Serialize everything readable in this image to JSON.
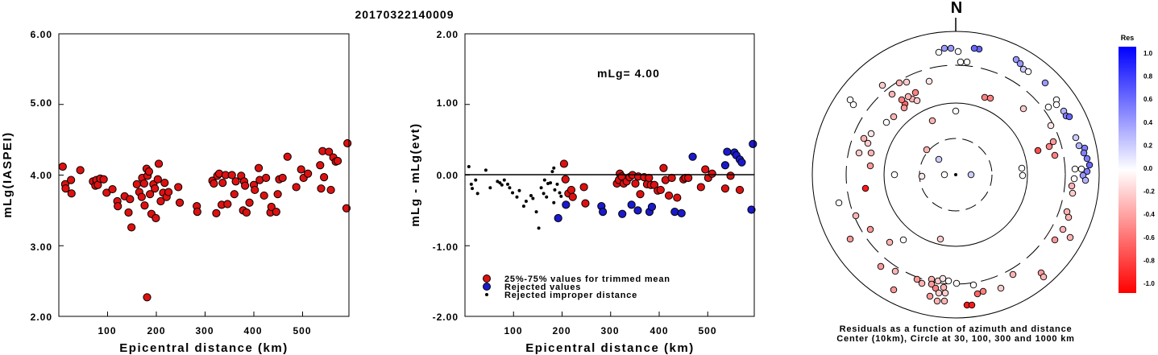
{
  "title": "20170322140009",
  "colors": {
    "kept": "#dd1111",
    "rejected": "#1a1acc",
    "improper": "#000000"
  },
  "chart_data": [
    {
      "type": "scatter",
      "name": "left",
      "xlabel": "Epicentral distance (km)",
      "ylabel": "mLg(IASPEI)",
      "xlim": [
        0,
        595
      ],
      "ylim": [
        2.0,
        6.0
      ],
      "xticks": [
        "100",
        "200",
        "300",
        "400",
        "500"
      ],
      "yticks": [
        "2.00",
        "3.00",
        "4.00",
        "5.00",
        "6.00"
      ],
      "points": [
        [
          8,
          4.12
        ],
        [
          13,
          3.87
        ],
        [
          14,
          3.81
        ],
        [
          25,
          3.93
        ],
        [
          26,
          3.74
        ],
        [
          44,
          4.07
        ],
        [
          70,
          3.91
        ],
        [
          75,
          3.85
        ],
        [
          77,
          3.93
        ],
        [
          80,
          3.86
        ],
        [
          85,
          3.95
        ],
        [
          92,
          3.94
        ],
        [
          98,
          3.75
        ],
        [
          110,
          3.8
        ],
        [
          120,
          3.63
        ],
        [
          121,
          3.56
        ],
        [
          135,
          3.7
        ],
        [
          143,
          3.47
        ],
        [
          146,
          3.66
        ],
        [
          149,
          3.26
        ],
        [
          160,
          3.87
        ],
        [
          165,
          3.76
        ],
        [
          170,
          3.69
        ],
        [
          171,
          3.96
        ],
        [
          175,
          3.88
        ],
        [
          176,
          3.57
        ],
        [
          180,
          4.09
        ],
        [
          181,
          2.27
        ],
        [
          182,
          3.99
        ],
        [
          185,
          4.05
        ],
        [
          187,
          3.73
        ],
        [
          190,
          3.45
        ],
        [
          194,
          3.87
        ],
        [
          197,
          3.81
        ],
        [
          199,
          3.39
        ],
        [
          203,
          3.94
        ],
        [
          205,
          4.16
        ],
        [
          209,
          3.63
        ],
        [
          214,
          3.75
        ],
        [
          217,
          3.89
        ],
        [
          221,
          3.69
        ],
        [
          225,
          3.76
        ],
        [
          245,
          3.83
        ],
        [
          248,
          3.61
        ],
        [
          283,
          3.56
        ],
        [
          284,
          3.48
        ],
        [
          315,
          3.92
        ],
        [
          318,
          3.88
        ],
        [
          323,
          3.46
        ],
        [
          325,
          3.99
        ],
        [
          329,
          4.02
        ],
        [
          334,
          3.58
        ],
        [
          336,
          3.89
        ],
        [
          342,
          4.0
        ],
        [
          346,
          3.59
        ],
        [
          355,
          4.0
        ],
        [
          360,
          3.73
        ],
        [
          363,
          3.91
        ],
        [
          374,
          3.99
        ],
        [
          378,
          3.5
        ],
        [
          380,
          3.91
        ],
        [
          382,
          3.85
        ],
        [
          385,
          3.47
        ],
        [
          391,
          3.61
        ],
        [
          400,
          3.86
        ],
        [
          402,
          3.79
        ],
        [
          410,
          4.1
        ],
        [
          412,
          3.93
        ],
        [
          421,
          3.71
        ],
        [
          425,
          3.96
        ],
        [
          434,
          3.47
        ],
        [
          436,
          3.55
        ],
        [
          446,
          3.48
        ],
        [
          449,
          3.73
        ],
        [
          452,
          3.94
        ],
        [
          459,
          3.96
        ],
        [
          469,
          4.26
        ],
        [
          487,
          3.83
        ],
        [
          497,
          4.08
        ],
        [
          502,
          3.96
        ],
        [
          511,
          4.02
        ],
        [
          536,
          4.14
        ],
        [
          538,
          3.81
        ],
        [
          541,
          4.34
        ],
        [
          544,
          3.97
        ],
        [
          554,
          4.33
        ],
        [
          558,
          3.79
        ],
        [
          563,
          4.25
        ],
        [
          568,
          4.19
        ],
        [
          572,
          4.2
        ],
        [
          590,
          3.53
        ],
        [
          592,
          4.45
        ]
      ]
    },
    {
      "type": "scatter",
      "name": "middle",
      "xlabel": "Epicentral distance (km)",
      "ylabel": "mLg - mLg(evt)",
      "xlim": [
        0,
        595
      ],
      "ylim": [
        -2.0,
        2.0
      ],
      "xticks": [
        "100",
        "200",
        "300",
        "400",
        "500"
      ],
      "yticks": [
        "-2.00",
        "-1.00",
        "0.00",
        "1.00",
        "2.00"
      ],
      "annotation": "mLg= 4.00",
      "legend": [
        {
          "label": "25%-75% values for trimmed mean",
          "kind": "kept"
        },
        {
          "label": "Rejected values",
          "kind": "rejected"
        },
        {
          "label": "Rejected improper distance",
          "kind": "improper"
        }
      ],
      "improper": [
        [
          8,
          0.12
        ],
        [
          13,
          -0.13
        ],
        [
          15,
          -0.19
        ],
        [
          22,
          -0.07
        ],
        [
          26,
          -0.26
        ],
        [
          43,
          0.07
        ],
        [
          52,
          -0.18
        ],
        [
          67,
          -0.09
        ],
        [
          72,
          -0.11
        ],
        [
          76,
          -0.14
        ],
        [
          81,
          -0.07
        ],
        [
          88,
          -0.13
        ],
        [
          92,
          -0.18
        ],
        [
          98,
          -0.25
        ],
        [
          107,
          -0.31
        ],
        [
          112,
          -0.22
        ],
        [
          121,
          -0.44
        ],
        [
          126,
          -0.37
        ],
        [
          136,
          -0.29
        ],
        [
          140,
          -0.33
        ],
        [
          147,
          -0.52
        ],
        [
          152,
          -0.75
        ],
        [
          157,
          -0.18
        ],
        [
          162,
          -0.26
        ],
        [
          164,
          -0.07
        ],
        [
          168,
          -0.31
        ],
        [
          171,
          -0.12
        ],
        [
          176,
          -0.11
        ],
        [
          180,
          0.05
        ],
        [
          183,
          0.1
        ],
        [
          183,
          -0.39
        ],
        [
          185,
          -0.21
        ],
        [
          190,
          -0.13
        ],
        [
          195,
          -0.25
        ],
        [
          198,
          -0.3
        ],
        [
          203,
          -0.07
        ]
      ],
      "rejected": [
        [
          192,
          -0.61
        ],
        [
          208,
          -0.42
        ],
        [
          281,
          -0.44
        ],
        [
          284,
          -0.52
        ],
        [
          324,
          -0.55
        ],
        [
          343,
          -0.42
        ],
        [
          356,
          -0.5
        ],
        [
          380,
          -0.52
        ],
        [
          385,
          -0.45
        ],
        [
          432,
          -0.52
        ],
        [
          446,
          -0.54
        ],
        [
          469,
          0.26
        ],
        [
          536,
          0.14
        ],
        [
          540,
          0.33
        ],
        [
          555,
          0.32
        ],
        [
          559,
          0.28
        ],
        [
          566,
          0.22
        ],
        [
          570,
          0.18
        ],
        [
          590,
          -0.49
        ],
        [
          593,
          0.44
        ]
      ],
      "kept": [
        [
          204,
          0.16
        ],
        [
          207,
          -0.06
        ],
        [
          213,
          -0.26
        ],
        [
          219,
          -0.21
        ],
        [
          222,
          -0.31
        ],
        [
          245,
          -0.17
        ],
        [
          248,
          -0.4
        ],
        [
          313,
          -0.12
        ],
        [
          317,
          -0.07
        ],
        [
          319,
          0.02
        ],
        [
          323,
          -0.02
        ],
        [
          327,
          -0.12
        ],
        [
          333,
          -0.09
        ],
        [
          339,
          -0.03
        ],
        [
          345,
          0.0
        ],
        [
          351,
          -0.12
        ],
        [
          357,
          -0.02
        ],
        [
          361,
          -0.27
        ],
        [
          369,
          -0.03
        ],
        [
          375,
          -0.13
        ],
        [
          379,
          -0.04
        ],
        [
          383,
          -0.14
        ],
        [
          390,
          -0.14
        ],
        [
          397,
          -0.22
        ],
        [
          403,
          -0.21
        ],
        [
          409,
          0.1
        ],
        [
          413,
          -0.07
        ],
        [
          420,
          -0.29
        ],
        [
          426,
          -0.04
        ],
        [
          437,
          -0.32
        ],
        [
          450,
          -0.06
        ],
        [
          454,
          -0.04
        ],
        [
          460,
          -0.04
        ],
        [
          486,
          -0.17
        ],
        [
          495,
          0.08
        ],
        [
          501,
          -0.04
        ],
        [
          509,
          0.02
        ],
        [
          536,
          -0.19
        ],
        [
          547,
          -0.01
        ],
        [
          566,
          -0.21
        ]
      ]
    }
  ],
  "polar": {
    "north_label": "N",
    "caption_line1": "Residuals as a function of azimuth and distance",
    "caption_line2": "Center (10km), Circle at 30, 100, 300 and 1000 km",
    "colorbar_title": "Res",
    "colorbar_ticks": [
      "1.0",
      "0.8",
      "0.6",
      "0.4",
      "0.2",
      "0.0",
      "-0.2",
      "-0.4",
      "-0.6",
      "-0.8",
      "-1.0"
    ],
    "stations": [
      [
        1172,
        217,
        0.0
      ],
      [
        1110,
        217,
        0.0
      ],
      [
        1165,
        198,
        0.2
      ],
      [
        1150,
        186,
        -0.3
      ],
      [
        1205,
        217,
        0.2
      ],
      [
        1268,
        209,
        0.0
      ],
      [
        1269,
        218,
        0.0
      ],
      [
        1167,
        297,
        -0.2
      ],
      [
        1121,
        298,
        0.0
      ],
      [
        1157,
        150,
        -0.3
      ],
      [
        1136,
        115,
        -0.5
      ],
      [
        1123,
        129,
        -0.6
      ],
      [
        1119,
        124,
        -0.5
      ],
      [
        1122,
        134,
        -0.4
      ],
      [
        1132,
        123,
        -0.3
      ],
      [
        1138,
        125,
        -0.2
      ],
      [
        1127,
        120,
        -0.3
      ],
      [
        1116,
        103,
        -0.3
      ],
      [
        1095,
        106,
        -0.2
      ],
      [
        1153,
        101,
        -0.1
      ],
      [
        1081,
        190,
        -0.3
      ],
      [
        1059,
        130,
        0.0
      ],
      [
        1055,
        124,
        0.0
      ],
      [
        1081,
        166,
        -0.1
      ],
      [
        1100,
        152,
        0.0
      ],
      [
        1066,
        190,
        -0.2
      ],
      [
        1072,
        172,
        -0.3
      ],
      [
        1077,
        178,
        -0.2
      ],
      [
        1080,
        206,
        -0.4
      ],
      [
        1041,
        252,
        0.0
      ],
      [
        1074,
        234,
        -0.9
      ],
      [
        1055,
        297,
        -0.4
      ],
      [
        1062,
        268,
        -0.3
      ],
      [
        1080,
        285,
        -0.4
      ],
      [
        1104,
        301,
        -0.3
      ],
      [
        1093,
        331,
        -0.4
      ],
      [
        1111,
        337,
        -0.3
      ],
      [
        1109,
        360,
        -0.4
      ],
      [
        1138,
        347,
        -0.4
      ],
      [
        1144,
        352,
        -0.3
      ],
      [
        1156,
        347,
        -0.3
      ],
      [
        1164,
        349,
        -0.2
      ],
      [
        1170,
        346,
        -0.1
      ],
      [
        1177,
        349,
        0.0
      ],
      [
        1156,
        353,
        -0.4
      ],
      [
        1161,
        358,
        -0.5
      ],
      [
        1171,
        357,
        -0.3
      ],
      [
        1173,
        364,
        -0.2
      ],
      [
        1165,
        364,
        -0.2
      ],
      [
        1154,
        368,
        -0.4
      ],
      [
        1163,
        374,
        -0.3
      ],
      [
        1172,
        374,
        -0.3
      ],
      [
        1187,
        352,
        0.0
      ],
      [
        1208,
        354,
        0.0
      ],
      [
        1213,
        365,
        -0.6
      ],
      [
        1220,
        362,
        -0.5
      ],
      [
        1200,
        379,
        -0.9
      ],
      [
        1206,
        379,
        -0.9
      ],
      [
        1242,
        358,
        -0.2
      ],
      [
        1257,
        341,
        -0.3
      ],
      [
        1292,
        339,
        -0.4
      ],
      [
        1295,
        344,
        -0.3
      ],
      [
        1328,
        295,
        -0.3
      ],
      [
        1309,
        298,
        -0.4
      ],
      [
        1319,
        285,
        -0.3
      ],
      [
        1324,
        263,
        -0.3
      ],
      [
        1326,
        270,
        -0.3
      ],
      [
        1331,
        240,
        -0.2
      ],
      [
        1330,
        231,
        -0.3
      ],
      [
        1333,
        222,
        0.0
      ],
      [
        1307,
        176,
        -0.4
      ],
      [
        1302,
        182,
        -0.5
      ],
      [
        1309,
        193,
        -0.5
      ],
      [
        1288,
        187,
        -0.7
      ],
      [
        1335,
        171,
        0.2
      ],
      [
        1339,
        181,
        0.3
      ],
      [
        1346,
        184,
        0.5
      ],
      [
        1345,
        190,
        0.5
      ],
      [
        1349,
        197,
        0.5
      ],
      [
        1352,
        205,
        0.6
      ],
      [
        1349,
        213,
        0.5
      ],
      [
        1344,
        218,
        0.4
      ],
      [
        1347,
        224,
        0.3
      ],
      [
        1334,
        210,
        0.0
      ],
      [
        1342,
        210,
        0.0
      ],
      [
        1320,
        138,
        0.3
      ],
      [
        1323,
        144,
        0.5
      ],
      [
        1327,
        145,
        0.6
      ],
      [
        1301,
        133,
        0.0
      ],
      [
        1311,
        124,
        0.0
      ],
      [
        1297,
        103,
        0.4
      ],
      [
        1261,
        74,
        0.4
      ],
      [
        1266,
        79,
        0.4
      ],
      [
        1270,
        86,
        0.2
      ],
      [
        1276,
        89,
        0.0
      ],
      [
        1304,
        156,
        -0.1
      ],
      [
        1311,
        130,
        0.0
      ],
      [
        1215,
        61,
        0.6
      ],
      [
        1209,
        60,
        0.6
      ],
      [
        1172,
        60,
        0.4
      ],
      [
        1180,
        60,
        0.4
      ],
      [
        1165,
        65,
        0.0
      ],
      [
        1189,
        64,
        0.0
      ],
      [
        1200,
        77,
        0.0
      ],
      [
        1192,
        77,
        0.0
      ],
      [
        1222,
        121,
        -0.5
      ],
      [
        1229,
        122,
        -0.5
      ],
      [
        1270,
        135,
        -0.2
      ],
      [
        1186,
        138,
        0.0
      ],
      [
        1107,
        117,
        -0.3
      ],
      [
        1109,
        145,
        -0.3
      ],
      [
        1144,
        219,
        -0.1
      ],
      [
        1125,
        102,
        -0.2
      ]
    ]
  }
}
